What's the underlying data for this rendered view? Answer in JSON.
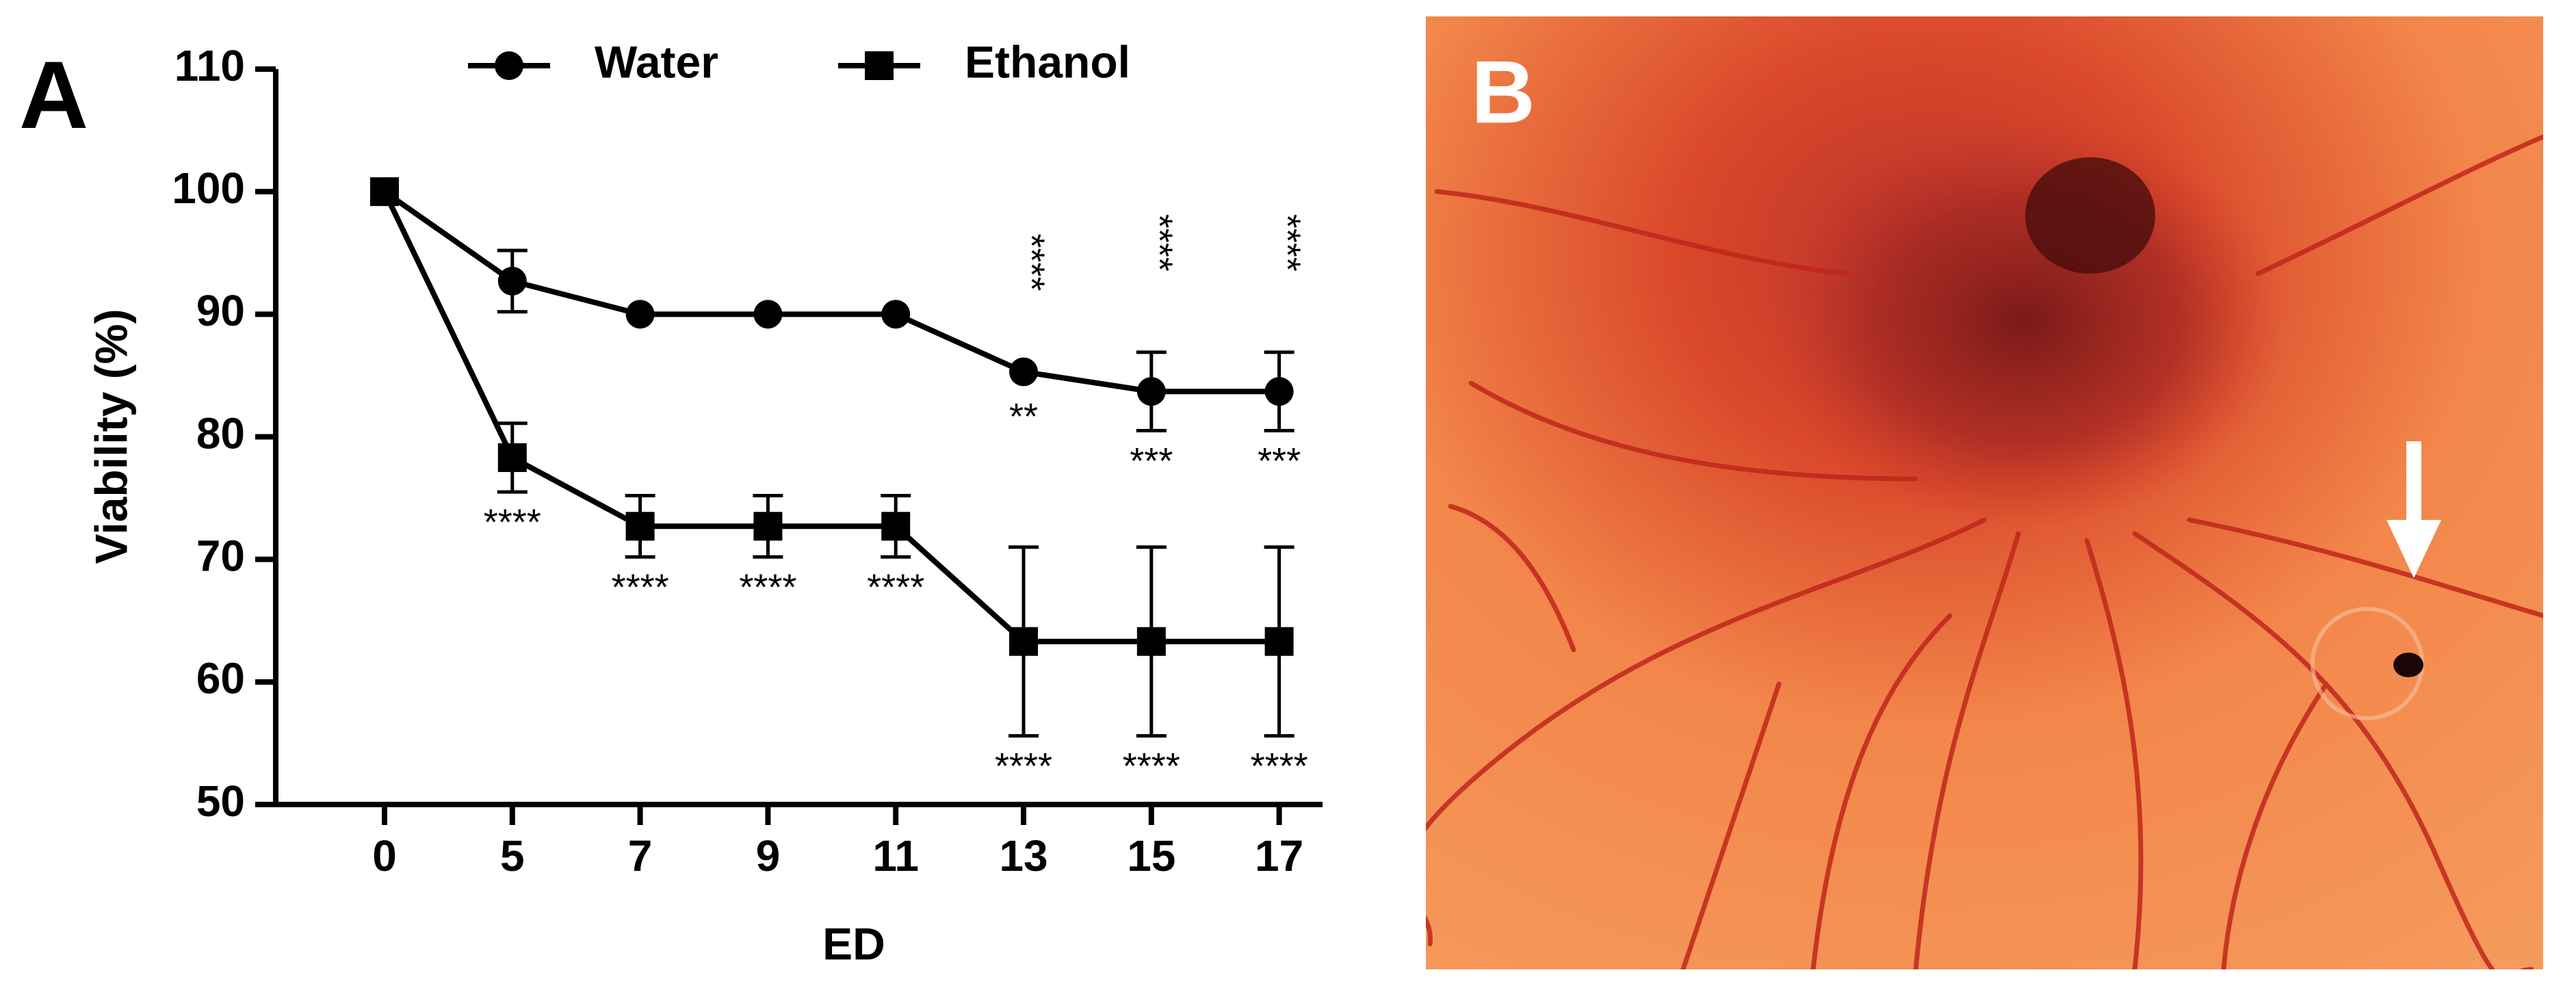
{
  "chart_data": {
    "type": "line",
    "panel_label": "A",
    "photo_label": "B",
    "x_label": "ED",
    "y_label": "Viability (%)",
    "categories": [
      "0",
      "5",
      "7",
      "9",
      "11",
      "13",
      "15",
      "17"
    ],
    "ylim": [
      50,
      110
    ],
    "yticks": [
      50,
      60,
      70,
      80,
      90,
      100,
      110
    ],
    "legend": "top",
    "series": [
      {
        "name": "Water",
        "color": "#000000",
        "marker": "circle",
        "values": [
          100,
          92.7,
          90,
          90,
          90,
          85.3,
          83.7,
          83.7
        ],
        "errors": [
          0,
          2.5,
          0,
          0,
          0,
          0,
          3.2,
          3.2
        ],
        "significance_above": [
          null,
          null,
          null,
          null,
          null,
          "****",
          "****",
          "****"
        ],
        "significance_below": [
          null,
          null,
          null,
          null,
          null,
          "**",
          "***",
          "***"
        ]
      },
      {
        "name": "Ethanol",
        "color": "#000000",
        "marker": "square",
        "values": [
          100,
          78.3,
          72.7,
          72.7,
          72.7,
          63.3,
          63.3,
          63.3
        ],
        "errors": [
          0,
          2.8,
          2.5,
          2.5,
          2.5,
          7.7,
          7.7,
          7.7
        ],
        "significance_below": [
          null,
          "****",
          "****",
          "****",
          "****",
          "****",
          "****",
          "****"
        ]
      }
    ]
  }
}
